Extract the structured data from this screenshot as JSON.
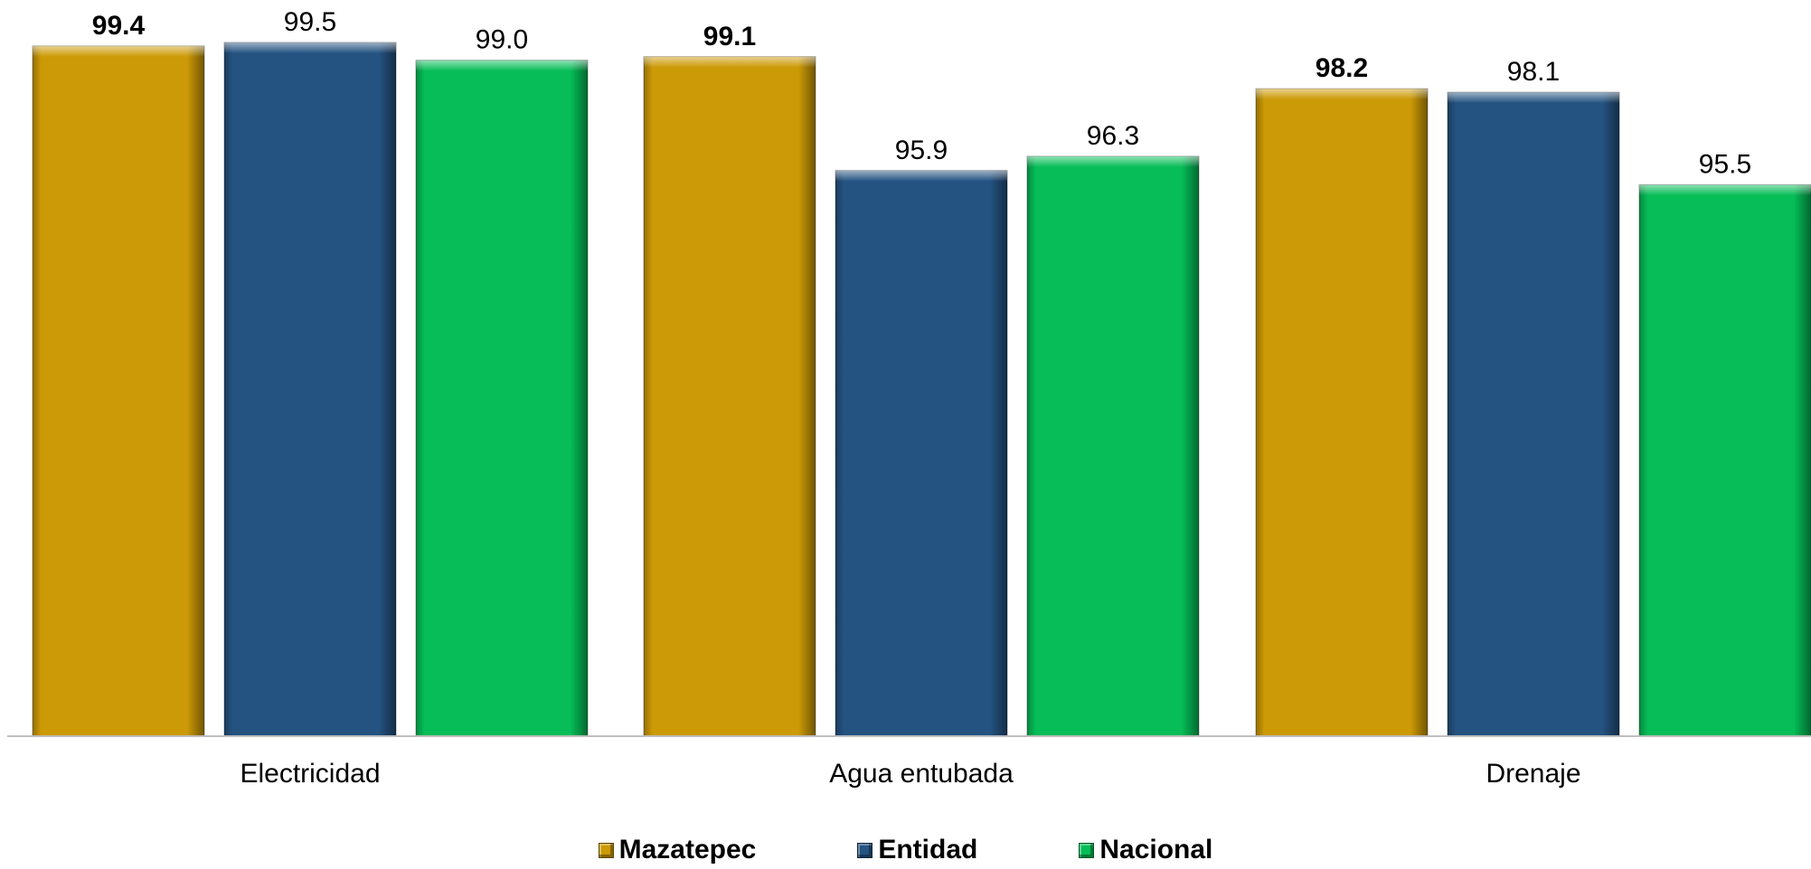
{
  "chart_data": {
    "type": "bar",
    "categories": [
      "Electricidad",
      "Agua entubada",
      "Drenaje"
    ],
    "series": [
      {
        "name": "Mazatepec",
        "color": "#CC9A06",
        "bold_labels": true,
        "values": [
          99.4,
          99.1,
          98.2
        ]
      },
      {
        "name": "Entidad",
        "color": "#245381",
        "bold_labels": false,
        "values": [
          99.5,
          95.9,
          98.1
        ]
      },
      {
        "name": "Nacional",
        "color": "#06BD57",
        "bold_labels": false,
        "values": [
          99.0,
          96.3,
          95.5
        ]
      }
    ],
    "value_labels": [
      [
        "99.4",
        "99.5",
        "99.0"
      ],
      [
        "99.1",
        "95.9",
        "96.3"
      ],
      [
        "98.2",
        "98.1",
        "95.5"
      ]
    ],
    "ylim": [
      80,
      100
    ],
    "grid": false,
    "legend_position": "bottom"
  }
}
